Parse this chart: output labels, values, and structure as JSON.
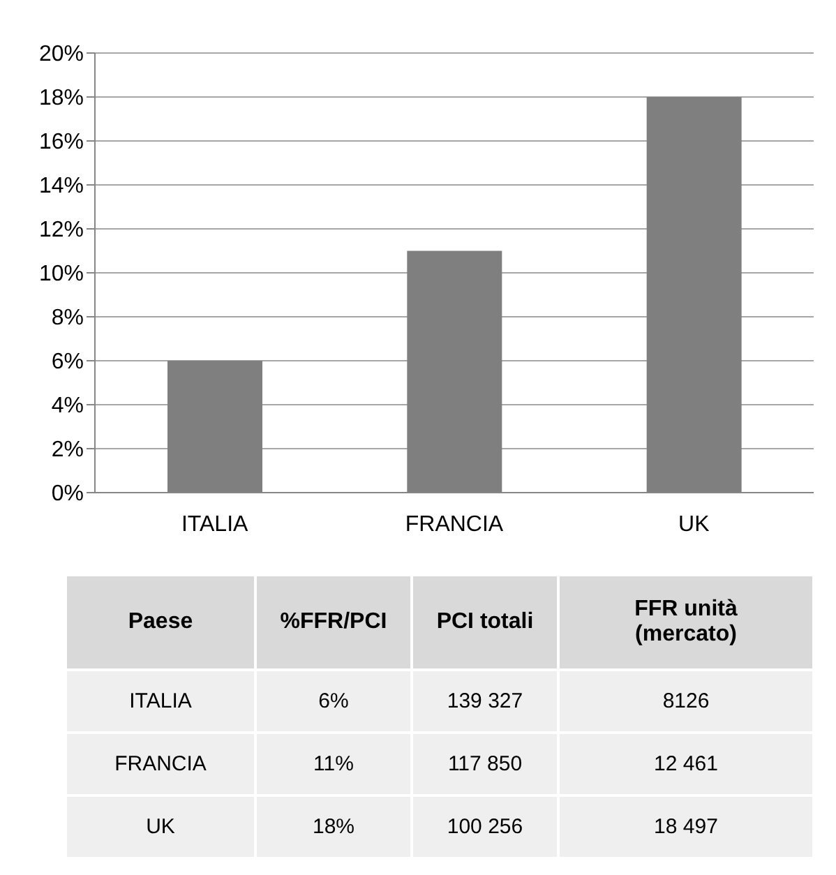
{
  "chart_data": [
    {
      "type": "bar",
      "categories": [
        "ITALIA",
        "FRANCIA",
        "UK"
      ],
      "series": [
        {
          "name": "%FFR/PCI",
          "color": "#7f7f7f",
          "values": [
            6,
            11,
            18
          ],
          "value_labels": [
            "6%",
            "11%",
            "18%"
          ]
        }
      ],
      "ylim": [
        0,
        20
      ],
      "yticks": [
        {
          "value": 0,
          "label": "0%"
        },
        {
          "value": 2,
          "label": "2%"
        },
        {
          "value": 4,
          "label": "4%"
        },
        {
          "value": 6,
          "label": "6%"
        },
        {
          "value": 8,
          "label": "8%"
        },
        {
          "value": 10,
          "label": "10%"
        },
        {
          "value": 12,
          "label": "12%"
        },
        {
          "value": 14,
          "label": "14%"
        },
        {
          "value": 16,
          "label": "16%"
        },
        {
          "value": 18,
          "label": "18%"
        },
        {
          "value": 20,
          "label": "20%"
        }
      ],
      "grid": "y",
      "legend": false
    },
    {
      "type": "other",
      "xlabel": "Paese",
      "categories": [
        "ITALIA",
        "FRANCIA",
        "UK"
      ],
      "data_labels": true,
      "series": [
        {
          "name": "PCI totali",
          "values": [
            139327,
            117850,
            100256
          ]
        },
        {
          "name": "FFR unità (mercato)",
          "values": [
            8126,
            12461,
            18497
          ]
        }
      ]
    }
  ]
}
